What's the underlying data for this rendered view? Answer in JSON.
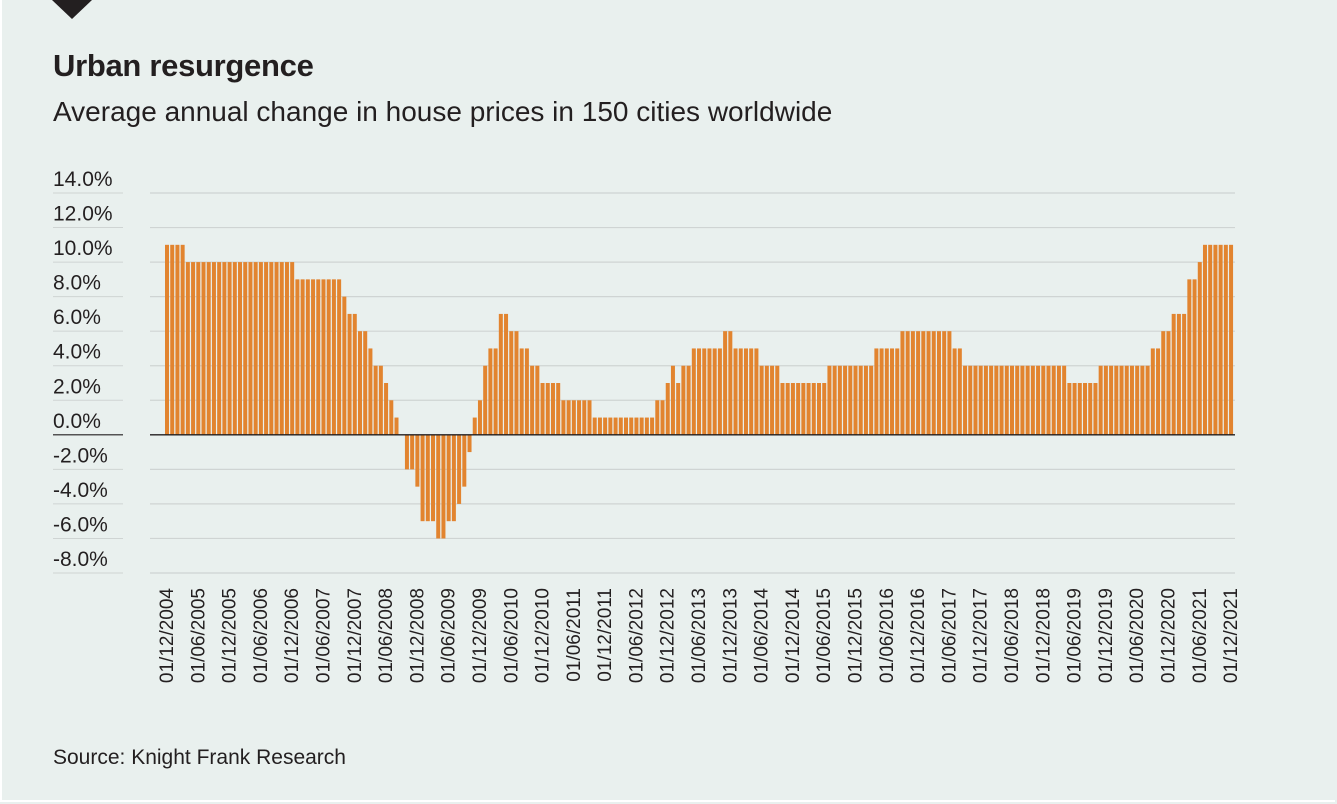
{
  "header": {
    "title": "Urban resurgence",
    "subtitle": "Average annual change in house prices in 150 cities worldwide"
  },
  "footer": {
    "source": "Source: Knight Frank Research"
  },
  "colors": {
    "bar": "#e2842f",
    "text": "#231f20",
    "background": "#e9f0ee",
    "grid": "#cfd4d3",
    "baseline": "#231f20"
  },
  "chart_data": {
    "type": "bar",
    "title": "Urban resurgence",
    "subtitle": "Average annual change in house prices in 150 cities worldwide",
    "xlabel": "",
    "ylabel": "",
    "ylim": [
      -8,
      14
    ],
    "y_ticks": [
      14,
      12,
      10,
      8,
      6,
      4,
      2,
      0,
      -2,
      -4,
      -6,
      -8
    ],
    "y_tick_labels": [
      "14.0%",
      "12.0%",
      "10.0%",
      "8.0%",
      "6.0%",
      "4.0%",
      "2.0%",
      "0.0%",
      "-2.0%",
      "-4.0%",
      "-6.0%",
      "-8.0%"
    ],
    "grid": true,
    "legend": "none",
    "x_tick_every": 6,
    "x_tick_labels": [
      "01/12/2004",
      "01/06/2005",
      "01/12/2005",
      "01/06/2006",
      "01/12/2006",
      "01/06/2007",
      "01/12/2007",
      "01/06/2008",
      "01/12/2008",
      "01/06/2009",
      "01/12/2009",
      "01/06/2010",
      "01/12/2010",
      "01/06/2011",
      "01/12/2011",
      "01/06/2012",
      "01/12/2012",
      "01/06/2013",
      "01/12/2013",
      "01/06/2014",
      "01/12/2014",
      "01/06/2015",
      "01/12/2015",
      "01/06/2016",
      "01/12/2016",
      "01/06/2017",
      "01/12/2017",
      "01/06/2018",
      "01/12/2018",
      "01/06/2019",
      "01/12/2019",
      "01/06/2020",
      "01/12/2020",
      "01/06/2021",
      "01/12/2021"
    ],
    "categories": [
      "01/12/2004",
      "01/01/2005",
      "01/02/2005",
      "01/03/2005",
      "01/04/2005",
      "01/05/2005",
      "01/06/2005",
      "01/07/2005",
      "01/08/2005",
      "01/09/2005",
      "01/10/2005",
      "01/11/2005",
      "01/12/2005",
      "01/01/2006",
      "01/02/2006",
      "01/03/2006",
      "01/04/2006",
      "01/05/2006",
      "01/06/2006",
      "01/07/2006",
      "01/08/2006",
      "01/09/2006",
      "01/10/2006",
      "01/11/2006",
      "01/12/2006",
      "01/01/2007",
      "01/02/2007",
      "01/03/2007",
      "01/04/2007",
      "01/05/2007",
      "01/06/2007",
      "01/07/2007",
      "01/08/2007",
      "01/09/2007",
      "01/10/2007",
      "01/11/2007",
      "01/12/2007",
      "01/01/2008",
      "01/02/2008",
      "01/03/2008",
      "01/04/2008",
      "01/05/2008",
      "01/06/2008",
      "01/07/2008",
      "01/08/2008",
      "01/09/2008",
      "01/10/2008",
      "01/11/2008",
      "01/12/2008",
      "01/01/2009",
      "01/02/2009",
      "01/03/2009",
      "01/04/2009",
      "01/05/2009",
      "01/06/2009",
      "01/07/2009",
      "01/08/2009",
      "01/09/2009",
      "01/10/2009",
      "01/11/2009",
      "01/12/2009",
      "01/01/2010",
      "01/02/2010",
      "01/03/2010",
      "01/04/2010",
      "01/05/2010",
      "01/06/2010",
      "01/07/2010",
      "01/08/2010",
      "01/09/2010",
      "01/10/2010",
      "01/11/2010",
      "01/12/2010",
      "01/01/2011",
      "01/02/2011",
      "01/03/2011",
      "01/04/2011",
      "01/05/2011",
      "01/06/2011",
      "01/07/2011",
      "01/08/2011",
      "01/09/2011",
      "01/10/2011",
      "01/11/2011",
      "01/12/2011",
      "01/01/2012",
      "01/02/2012",
      "01/03/2012",
      "01/04/2012",
      "01/05/2012",
      "01/06/2012",
      "01/07/2012",
      "01/08/2012",
      "01/09/2012",
      "01/10/2012",
      "01/11/2012",
      "01/12/2012",
      "01/01/2013",
      "01/02/2013",
      "01/03/2013",
      "01/04/2013",
      "01/05/2013",
      "01/06/2013",
      "01/07/2013",
      "01/08/2013",
      "01/09/2013",
      "01/10/2013",
      "01/11/2013",
      "01/12/2013",
      "01/01/2014",
      "01/02/2014",
      "01/03/2014",
      "01/04/2014",
      "01/05/2014",
      "01/06/2014",
      "01/07/2014",
      "01/08/2014",
      "01/09/2014",
      "01/10/2014",
      "01/11/2014",
      "01/12/2014",
      "01/01/2015",
      "01/02/2015",
      "01/03/2015",
      "01/04/2015",
      "01/05/2015",
      "01/06/2015",
      "01/07/2015",
      "01/08/2015",
      "01/09/2015",
      "01/10/2015",
      "01/11/2015",
      "01/12/2015",
      "01/01/2016",
      "01/02/2016",
      "01/03/2016",
      "01/04/2016",
      "01/05/2016",
      "01/06/2016",
      "01/07/2016",
      "01/08/2016",
      "01/09/2016",
      "01/10/2016",
      "01/11/2016",
      "01/12/2016",
      "01/01/2017",
      "01/02/2017",
      "01/03/2017",
      "01/04/2017",
      "01/05/2017",
      "01/06/2017",
      "01/07/2017",
      "01/08/2017",
      "01/09/2017",
      "01/10/2017",
      "01/11/2017",
      "01/12/2017",
      "01/01/2018",
      "01/02/2018",
      "01/03/2018",
      "01/04/2018",
      "01/05/2018",
      "01/06/2018",
      "01/07/2018",
      "01/08/2018",
      "01/09/2018",
      "01/10/2018",
      "01/11/2018",
      "01/12/2018",
      "01/01/2019",
      "01/02/2019",
      "01/03/2019",
      "01/04/2019",
      "01/05/2019",
      "01/06/2019",
      "01/07/2019",
      "01/08/2019",
      "01/09/2019",
      "01/10/2019",
      "01/11/2019",
      "01/12/2019",
      "01/01/2020",
      "01/02/2020",
      "01/03/2020",
      "01/04/2020",
      "01/05/2020",
      "01/06/2020",
      "01/07/2020",
      "01/08/2020",
      "01/09/2020",
      "01/10/2020",
      "01/11/2020",
      "01/12/2020",
      "01/01/2021",
      "01/02/2021",
      "01/03/2021",
      "01/04/2021",
      "01/05/2021",
      "01/06/2021",
      "01/07/2021",
      "01/08/2021",
      "01/09/2021",
      "01/10/2021",
      "01/11/2021",
      "01/12/2021"
    ],
    "values": [
      11,
      11,
      11,
      11,
      10,
      10,
      10,
      10,
      10,
      10,
      10,
      10,
      10,
      10,
      10,
      10,
      10,
      10,
      10,
      10,
      10,
      10,
      10,
      10,
      10,
      9,
      9,
      9,
      9,
      9,
      9,
      9,
      9,
      9,
      8,
      7,
      7,
      6,
      6,
      5,
      4,
      4,
      3,
      2,
      1,
      0,
      -2,
      -2,
      -3,
      -5,
      -5,
      -5,
      -6,
      -6,
      -5,
      -5,
      -4,
      -3,
      -1,
      1,
      2,
      4,
      5,
      5,
      7,
      7,
      6,
      6,
      5,
      5,
      4,
      4,
      3,
      3,
      3,
      3,
      2,
      2,
      2,
      2,
      2,
      2,
      1,
      1,
      1,
      1,
      1,
      1,
      1,
      1,
      1,
      1,
      1,
      1,
      2,
      2,
      3,
      4,
      3,
      4,
      4,
      5,
      5,
      5,
      5,
      5,
      5,
      6,
      6,
      5,
      5,
      5,
      5,
      5,
      4,
      4,
      4,
      4,
      3,
      3,
      3,
      3,
      3,
      3,
      3,
      3,
      3,
      4,
      4,
      4,
      4,
      4,
      4,
      4,
      4,
      4,
      5,
      5,
      5,
      5,
      5,
      6,
      6,
      6,
      6,
      6,
      6,
      6,
      6,
      6,
      6,
      5,
      5,
      4,
      4,
      4,
      4,
      4,
      4,
      4,
      4,
      4,
      4,
      4,
      4,
      4,
      4,
      4,
      4,
      4,
      4,
      4,
      4,
      3,
      3,
      3,
      3,
      3,
      3,
      4,
      4,
      4,
      4,
      4,
      4,
      4,
      4,
      4,
      4,
      5,
      5,
      6,
      6,
      7,
      7,
      7,
      9,
      9,
      10,
      11,
      11,
      11,
      11,
      11,
      11
    ],
    "unit": "%"
  }
}
